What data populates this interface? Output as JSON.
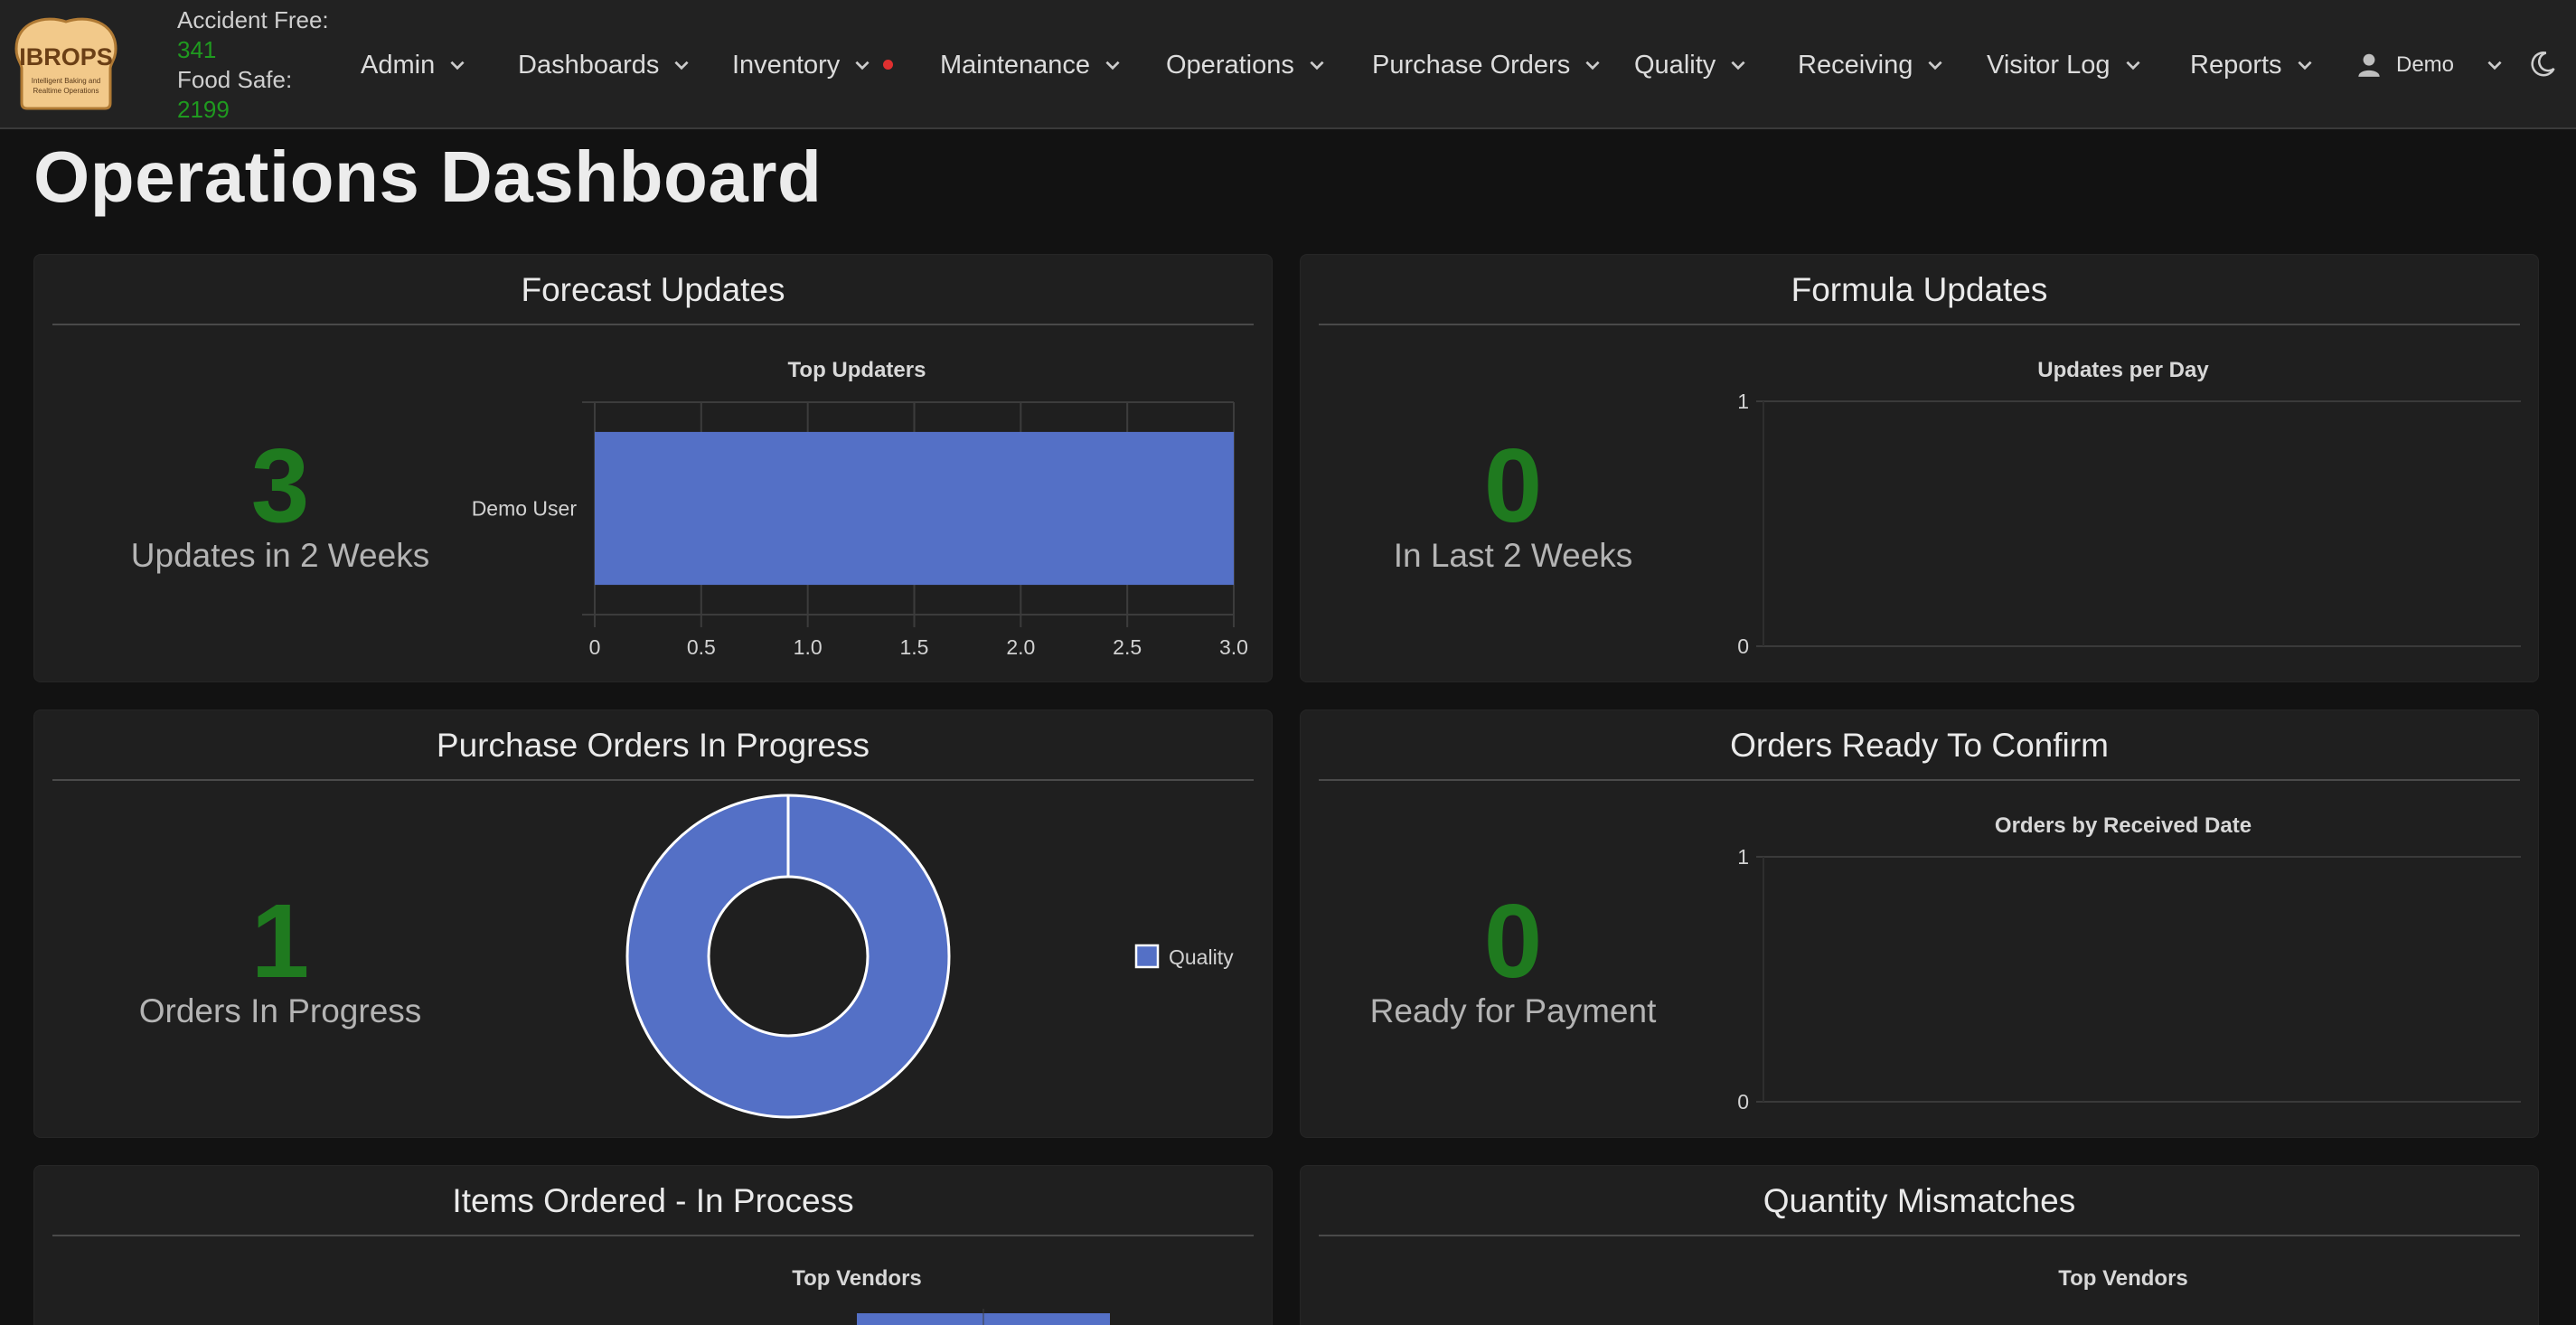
{
  "app": {
    "logo_text": "IBROPS",
    "logo_tagline": "Intelligent Baking and Realtime Operations",
    "accident_free_label": "Accident Free:",
    "accident_free_value": "341",
    "food_safe_label": "Food Safe:",
    "food_safe_value": "2199"
  },
  "nav": {
    "items": [
      {
        "label": "Admin"
      },
      {
        "label": "Dashboards"
      },
      {
        "label": "Inventory"
      },
      {
        "label": "Maintenance"
      },
      {
        "label": "Operations"
      },
      {
        "label": "Purchase Orders"
      },
      {
        "label": "Quality"
      },
      {
        "label": "Receiving"
      },
      {
        "label": "Visitor Log"
      },
      {
        "label": "Reports"
      }
    ],
    "user_label": "Demo",
    "inventory_alert_color": "#e03030"
  },
  "page": {
    "title": "Operations Dashboard"
  },
  "colors": {
    "accent_green": "#1f7a1f",
    "bar_blue": "#5470c6"
  },
  "cards": {
    "forecast": {
      "title": "Forecast Updates",
      "count": "3",
      "count_label": "Updates in 2 Weeks",
      "chart_title": "Top Updaters"
    },
    "formula": {
      "title": "Formula Updates",
      "count": "0",
      "count_label": "In Last 2 Weeks",
      "chart_title": "Updates per Day"
    },
    "po_progress": {
      "title": "Purchase Orders In Progress",
      "count": "1",
      "count_label": "Orders In Progress",
      "legend": "Quality"
    },
    "ready_confirm": {
      "title": "Orders Ready To Confirm",
      "count": "0",
      "count_label": "Ready for Payment",
      "chart_title": "Orders by Received Date"
    },
    "items_ordered": {
      "title": "Items Ordered - In Process",
      "chart_title": "Top Vendors"
    },
    "qty_mismatch": {
      "title": "Quantity Mismatches",
      "chart_title": "Top Vendors"
    }
  },
  "chart_data": [
    {
      "type": "bar",
      "orientation": "horizontal",
      "title": "Top Updaters",
      "categories": [
        "Demo User"
      ],
      "values": [
        3
      ],
      "xlim": [
        0,
        3
      ],
      "xticks": [
        "0",
        "0.5",
        "1.0",
        "1.5",
        "2.0",
        "2.5",
        "3.0"
      ],
      "grid": true
    },
    {
      "type": "line",
      "title": "Updates per Day",
      "x": [],
      "y": [],
      "ylim": [
        0,
        1
      ],
      "yticks": [
        "0",
        "1"
      ]
    },
    {
      "type": "pie",
      "variant": "doughnut",
      "labels": [
        "Quality"
      ],
      "values": [
        1
      ],
      "legend": "right"
    },
    {
      "type": "line",
      "title": "Orders by Received Date",
      "x": [],
      "y": [],
      "ylim": [
        0,
        1
      ],
      "yticks": [
        "0",
        "1"
      ]
    },
    {
      "type": "bar",
      "orientation": "horizontal",
      "title": "Top Vendors",
      "categories": [],
      "values": []
    },
    {
      "type": "bar",
      "title": "Top Vendors",
      "categories": [],
      "values": []
    }
  ]
}
